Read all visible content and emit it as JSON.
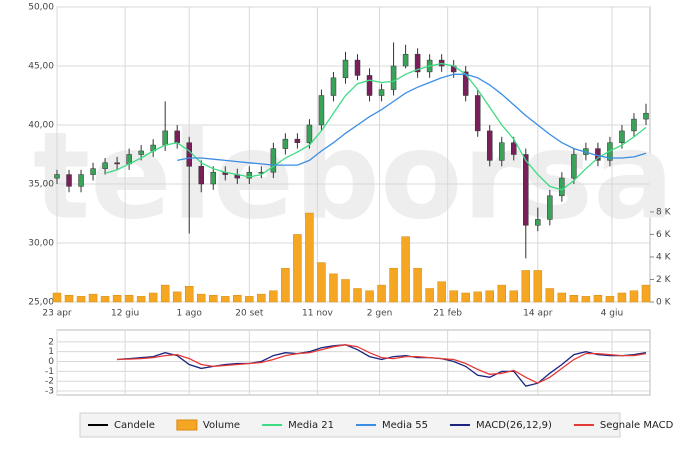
{
  "chart_data": [
    {
      "type": "candlestick",
      "name": "Candele",
      "watermark": "teleborsa",
      "x": [
        0,
        6,
        12,
        18,
        24,
        30,
        36,
        42,
        48,
        54,
        60,
        66,
        72,
        78,
        84,
        90,
        96,
        102,
        108,
        114,
        120,
        126,
        132,
        138,
        144,
        150,
        156,
        162,
        168,
        174,
        180,
        186,
        192,
        198,
        204,
        210,
        216,
        222,
        228,
        234,
        240,
        246,
        252,
        258,
        264,
        270,
        276,
        282,
        288,
        294
      ],
      "open": [
        35.5,
        35.8,
        34.8,
        35.8,
        36.3,
        36.8,
        36.7,
        37.5,
        37.8,
        38.3,
        39.5,
        38.5,
        36.5,
        35.0,
        36.0,
        35.8,
        35.5,
        36.0,
        36.0,
        38.0,
        38.8,
        38.5,
        40.0,
        42.5,
        44.0,
        45.5,
        44.2,
        42.5,
        43.0,
        45.0,
        46.0,
        44.5,
        45.5,
        45.0,
        44.5,
        42.5,
        39.5,
        37.0,
        38.5,
        37.5,
        31.5,
        32.0,
        34.0,
        35.5,
        37.5,
        38.0,
        37.0,
        38.5,
        39.5,
        40.5
      ],
      "high": [
        36.2,
        36.2,
        36.2,
        36.8,
        37.2,
        37.3,
        38.0,
        38.3,
        38.8,
        42.0,
        40.0,
        39.0,
        37.0,
        36.5,
        36.5,
        36.3,
        36.5,
        36.5,
        38.5,
        39.3,
        39.3,
        40.5,
        43.0,
        44.5,
        46.2,
        46.0,
        44.8,
        43.5,
        47.0,
        46.8,
        46.5,
        46.0,
        46.0,
        45.5,
        45.0,
        43.0,
        40.0,
        39.0,
        39.0,
        38.0,
        33.0,
        34.5,
        36.0,
        38.0,
        38.5,
        38.5,
        39.0,
        40.0,
        41.0,
        41.8
      ],
      "low": [
        35.0,
        34.3,
        34.3,
        35.3,
        35.8,
        36.2,
        36.2,
        37.0,
        37.3,
        37.8,
        38.0,
        30.8,
        34.3,
        34.5,
        35.3,
        35.0,
        35.0,
        35.5,
        35.5,
        37.5,
        38.0,
        38.0,
        39.5,
        42.0,
        43.5,
        43.8,
        42.0,
        42.0,
        42.5,
        44.8,
        44.0,
        44.0,
        44.5,
        44.0,
        42.0,
        39.0,
        36.5,
        36.5,
        37.0,
        28.7,
        31.0,
        31.5,
        33.5,
        35.0,
        37.0,
        36.5,
        36.5,
        38.0,
        39.0,
        40.0
      ],
      "close": [
        35.8,
        34.8,
        35.8,
        36.3,
        36.8,
        36.7,
        37.5,
        37.8,
        38.3,
        39.5,
        38.5,
        36.5,
        35.0,
        36.0,
        35.8,
        35.5,
        36.0,
        36.0,
        38.0,
        38.8,
        38.5,
        40.0,
        42.5,
        44.0,
        45.5,
        44.2,
        42.5,
        43.0,
        45.0,
        46.0,
        44.5,
        45.5,
        45.0,
        44.5,
        42.5,
        39.5,
        37.0,
        38.5,
        37.5,
        31.5,
        32.0,
        34.0,
        35.5,
        37.5,
        38.0,
        37.0,
        38.5,
        39.5,
        40.5,
        41.0
      ],
      "up_color": "#3aa35a",
      "down_color": "#7a1f5c",
      "color": "#000000",
      "xlim": [
        0,
        296
      ],
      "xticks": [
        {
          "value": 0,
          "label": "23 apr"
        },
        {
          "value": 34,
          "label": "12 giu"
        },
        {
          "value": 66,
          "label": "1 ago"
        },
        {
          "value": 96,
          "label": "20 set"
        },
        {
          "value": 130,
          "label": "11 nov"
        },
        {
          "value": 161,
          "label": "2 gen"
        },
        {
          "value": 195,
          "label": "21 feb"
        },
        {
          "value": 240,
          "label": "14 apr"
        },
        {
          "value": 277,
          "label": "4 giu"
        }
      ],
      "ylim": [
        25,
        50
      ],
      "yticks": [
        {
          "value": 25,
          "label": "25,00"
        },
        {
          "value": 30,
          "label": "30,00"
        },
        {
          "value": 35,
          "label": "35,00"
        },
        {
          "value": 40,
          "label": "40,00"
        },
        {
          "value": 45,
          "label": "45,00"
        },
        {
          "value": 50,
          "label": "50,00"
        }
      ],
      "y2lim": [
        0,
        26.2
      ],
      "y2ticks": [
        {
          "value": 0,
          "label": "0 K"
        },
        {
          "value": 2,
          "label": "2 K"
        },
        {
          "value": 4,
          "label": "4 K"
        },
        {
          "value": 6,
          "label": "6 K"
        },
        {
          "value": 8,
          "label": "8 K"
        }
      ],
      "grid": true,
      "series": [
        {
          "name": "Volume",
          "type": "bar",
          "axis": "y2",
          "color": "#f5a623",
          "values": [
            0.8,
            0.6,
            0.5,
            0.7,
            0.5,
            0.6,
            0.6,
            0.5,
            0.8,
            1.5,
            0.9,
            1.4,
            0.7,
            0.6,
            0.5,
            0.6,
            0.5,
            0.7,
            1.0,
            3.0,
            6.0,
            7.9,
            3.5,
            2.5,
            2.0,
            1.2,
            1.0,
            1.5,
            3.0,
            5.8,
            3.0,
            1.2,
            1.8,
            1.0,
            0.8,
            0.9,
            1.0,
            1.5,
            1.0,
            2.8,
            2.8,
            1.2,
            0.8,
            0.6,
            0.5,
            0.6,
            0.5,
            0.8,
            1.0,
            1.5
          ]
        },
        {
          "name": "Media 21",
          "type": "line",
          "color": "#3ddc84",
          "values": [
            null,
            null,
            null,
            null,
            35.9,
            36.2,
            36.7,
            37.2,
            37.8,
            38.3,
            38.5,
            37.8,
            36.8,
            36.3,
            36.0,
            35.8,
            35.6,
            35.8,
            36.5,
            37.2,
            37.7,
            38.3,
            39.5,
            41.0,
            42.5,
            43.5,
            43.8,
            43.6,
            43.7,
            44.3,
            44.7,
            45.0,
            45.2,
            45.0,
            44.3,
            43.0,
            41.5,
            40.0,
            38.8,
            37.0,
            35.8,
            34.8,
            34.5,
            35.3,
            36.3,
            37.2,
            37.8,
            38.3,
            39.0,
            39.8
          ]
        },
        {
          "name": "Media 55",
          "type": "line",
          "color": "#3a8ee6",
          "values": [
            null,
            null,
            null,
            null,
            null,
            null,
            null,
            null,
            null,
            null,
            37.0,
            37.2,
            37.2,
            37.1,
            37.0,
            36.9,
            36.8,
            36.7,
            36.6,
            36.6,
            36.6,
            37.0,
            37.8,
            38.5,
            39.3,
            40.0,
            40.7,
            41.3,
            42.0,
            42.7,
            43.2,
            43.6,
            44.0,
            44.3,
            44.3,
            44.0,
            43.4,
            42.6,
            41.7,
            40.8,
            40.0,
            39.2,
            38.5,
            38.0,
            37.7,
            37.4,
            37.2,
            37.2,
            37.3,
            37.6
          ]
        }
      ]
    },
    {
      "type": "line",
      "x": [
        0,
        6,
        12,
        18,
        24,
        30,
        36,
        42,
        48,
        54,
        60,
        66,
        72,
        78,
        84,
        90,
        96,
        102,
        108,
        114,
        120,
        126,
        132,
        138,
        144,
        150,
        156,
        162,
        168,
        174,
        180,
        186,
        192,
        198,
        204,
        210,
        216,
        222,
        228,
        234,
        240,
        246,
        252,
        258,
        264,
        270,
        276,
        282,
        288,
        294
      ],
      "xlim": [
        0,
        296
      ],
      "ylim": [
        -3.4,
        3.2
      ],
      "yticks": [
        2,
        1,
        0,
        -1,
        -2,
        -3
      ],
      "grid": true,
      "series": [
        {
          "name": "MACD(26,12,9)",
          "color": "#1a237e",
          "values": [
            null,
            null,
            null,
            null,
            null,
            0.2,
            0.3,
            0.4,
            0.5,
            0.9,
            0.6,
            -0.3,
            -0.7,
            -0.5,
            -0.3,
            -0.2,
            -0.2,
            0,
            0.6,
            0.9,
            0.8,
            1.0,
            1.4,
            1.6,
            1.7,
            1.2,
            0.5,
            0.2,
            0.5,
            0.6,
            0.4,
            0.4,
            0.3,
            0.0,
            -0.5,
            -1.4,
            -1.6,
            -1.0,
            -1.0,
            -2.5,
            -2.2,
            -1.2,
            -0.3,
            0.7,
            1.0,
            0.7,
            0.6,
            0.6,
            0.7,
            0.9
          ]
        },
        {
          "name": "Segnale MACD",
          "color": "#e53935",
          "values": [
            null,
            null,
            null,
            null,
            null,
            0.2,
            0.25,
            0.3,
            0.4,
            0.6,
            0.7,
            0.3,
            -0.3,
            -0.5,
            -0.4,
            -0.3,
            -0.2,
            -0.1,
            0.2,
            0.6,
            0.8,
            0.9,
            1.2,
            1.5,
            1.7,
            1.5,
            0.9,
            0.4,
            0.3,
            0.5,
            0.5,
            0.4,
            0.3,
            0.2,
            -0.2,
            -0.8,
            -1.3,
            -1.2,
            -0.9,
            -1.6,
            -2.2,
            -1.6,
            -0.7,
            0.2,
            0.8,
            0.8,
            0.7,
            0.6,
            0.6,
            0.8
          ]
        }
      ]
    }
  ]
}
